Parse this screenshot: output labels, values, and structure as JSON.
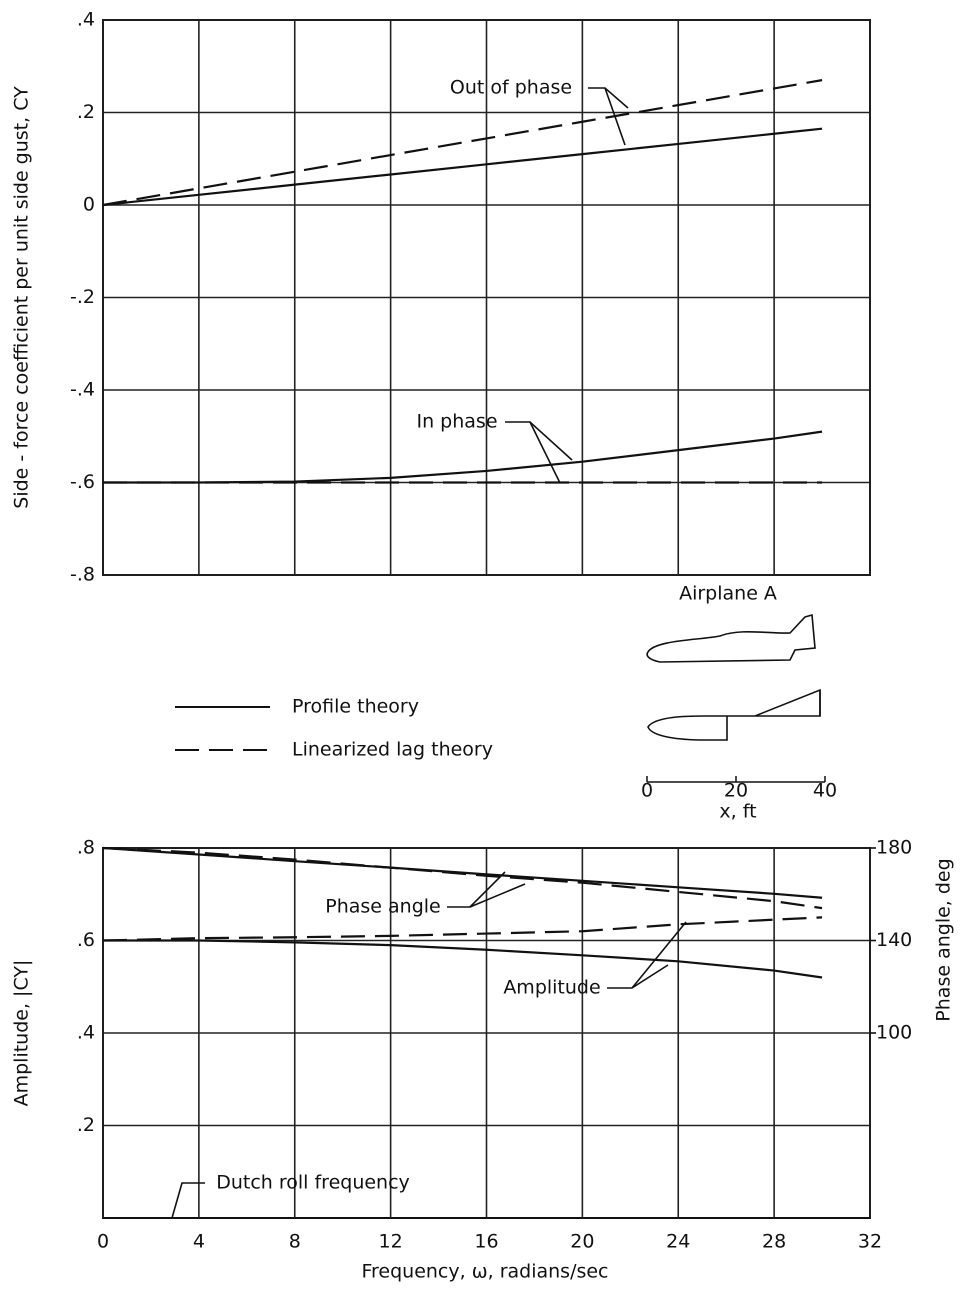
{
  "chart_data": [
    {
      "type": "line",
      "ylabel": "Side - force coefficient per unit side gust,  CY",
      "xlim": [
        0,
        32
      ],
      "ylim": [
        -0.8,
        0.4
      ],
      "yticks": [
        {
          "value": -0.8,
          "label": "-.8"
        },
        {
          "value": -0.6,
          "label": "-.6"
        },
        {
          "value": -0.4,
          "label": "-.4"
        },
        {
          "value": -0.2,
          "label": "-.2"
        },
        0,
        {
          "value": 0.2,
          "label": ".2"
        },
        {
          "value": 0.4,
          "label": ".4"
        }
      ],
      "grid": true,
      "x": [
        0,
        4,
        8,
        12,
        16,
        20,
        24,
        28,
        30
      ],
      "series": [
        {
          "style": "solid",
          "color": "#111111",
          "values": [
            0,
            0.022,
            0.044,
            0.066,
            0.088,
            0.11,
            0.132,
            0.154,
            0.165
          ]
        },
        {
          "style": "dashed",
          "color": "#111111",
          "values": [
            0,
            0.036,
            0.072,
            0.108,
            0.144,
            0.18,
            0.216,
            0.252,
            0.27
          ]
        },
        {
          "style": "solid",
          "color": "#111111",
          "values": [
            -0.6,
            -0.6,
            -0.598,
            -0.59,
            -0.575,
            -0.555,
            -0.53,
            -0.505,
            -0.49
          ]
        },
        {
          "style": "dashed",
          "color": "#111111",
          "values": [
            -0.6,
            -0.6,
            -0.6,
            -0.6,
            -0.6,
            -0.6,
            -0.6,
            -0.6,
            -0.6
          ]
        }
      ],
      "legend": [
        {
          "name": "Profile theory",
          "style": "solid"
        },
        {
          "name": "Linearized lag theory",
          "style": "dashed"
        }
      ],
      "annotations": [
        "Out of phase",
        "In phase"
      ],
      "inset": {
        "title": "Airplane A",
        "scale_ticks": [
          0,
          20,
          40
        ],
        "scale_label": "x, ft"
      }
    },
    {
      "type": "line",
      "xlabel": "Frequency, ω, radians/sec",
      "ylabel": "Amplitude, |CY|",
      "y2label": "Phase angle, deg",
      "xlim": [
        0,
        32
      ],
      "xticks": [
        0,
        4,
        8,
        12,
        16,
        20,
        24,
        28,
        32
      ],
      "ylim": [
        0,
        0.8
      ],
      "yticks": [
        {
          "value": 0.2,
          "label": ".2"
        },
        {
          "value": 0.4,
          "label": ".4"
        },
        {
          "value": 0.6,
          "label": ".6"
        },
        {
          "value": 0.8,
          "label": ".8"
        }
      ],
      "y2lim": [
        20,
        180
      ],
      "y2ticks": [
        100,
        140,
        180
      ],
      "grid": true,
      "x": [
        0,
        4,
        8,
        12,
        16,
        20,
        24,
        28,
        30
      ],
      "series": [
        {
          "style": "solid",
          "color": "#111111",
          "values": [
            0.6,
            0.6,
            0.596,
            0.59,
            0.58,
            0.568,
            0.555,
            0.535,
            0.52
          ]
        },
        {
          "style": "dashed",
          "color": "#111111",
          "values": [
            0.6,
            0.605,
            0.607,
            0.61,
            0.615,
            0.62,
            0.635,
            0.645,
            0.65
          ]
        },
        {
          "style": "solid",
          "color": "#111111",
          "axis": "y2",
          "values": [
            180,
            177.2,
            174.3,
            171.5,
            168.6,
            165.8,
            163,
            160.2,
            158.5
          ]
        },
        {
          "style": "dashed",
          "color": "#111111",
          "axis": "y2",
          "values": [
            180,
            178,
            175,
            171.5,
            168,
            165,
            161,
            157,
            154
          ]
        }
      ],
      "annotations": [
        "Phase angle",
        "Amplitude",
        "Dutch roll frequency"
      ]
    }
  ]
}
